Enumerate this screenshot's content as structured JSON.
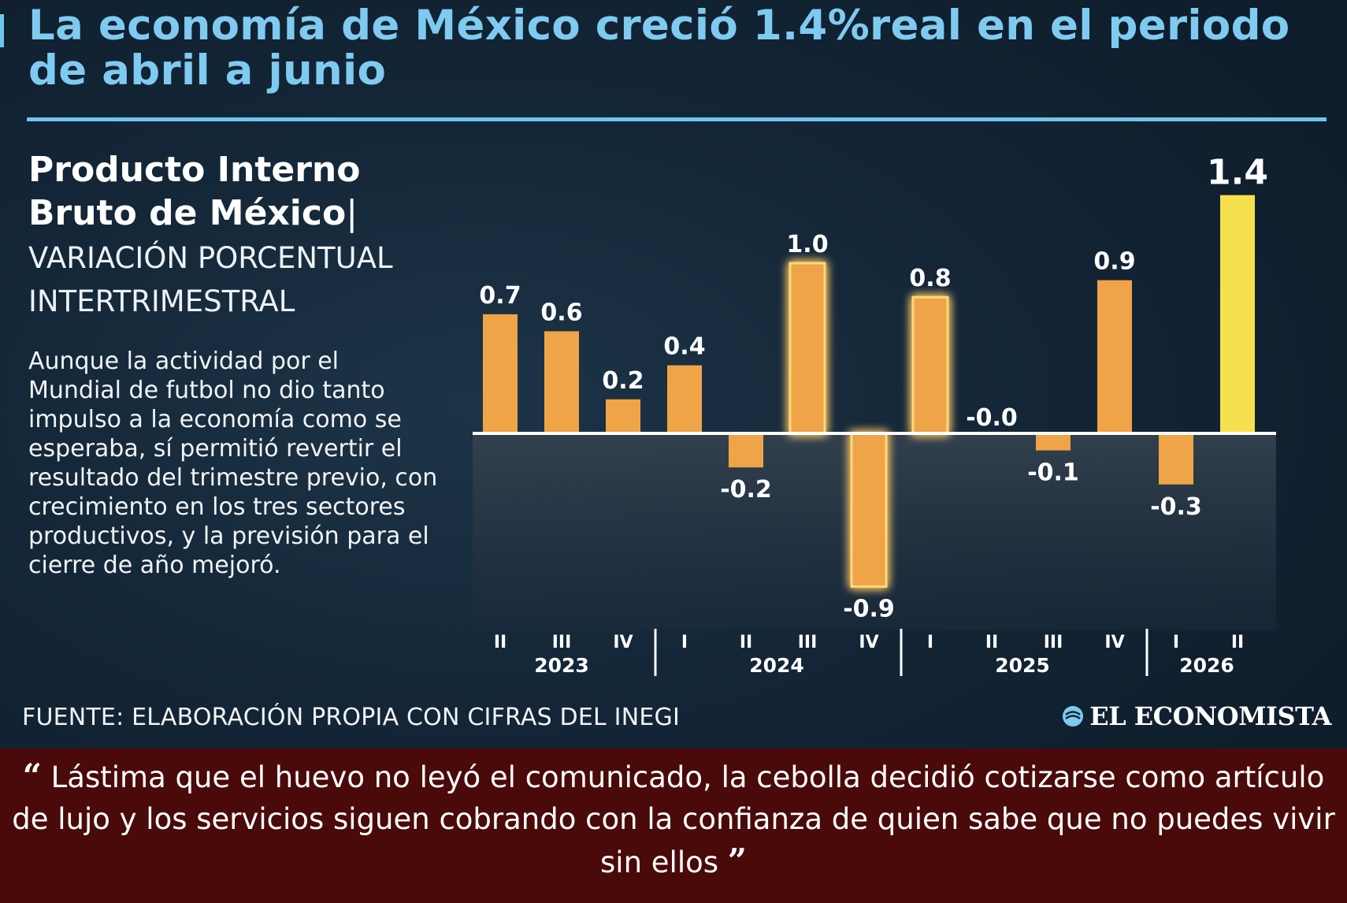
{
  "headline": "La economía de México creció 1.4%real en el periodo de abril a junio",
  "subtitle": {
    "title": "Producto Interno Bruto de México",
    "cursor": "|",
    "measure": "VARIACIÓN PORCENTUAL INTERTRIMESTRAL"
  },
  "body": "Aunque la actividad por el Mundial de futbol no dio tanto impulso a la economía como se esperaba, sí permitió revertir el resultado del trimestre previo, con crecimiento en los tres sectores productivos, y la previsión para el cierre de año mejoró.",
  "source": "FUENTE: ELABORACIÓN PROPIA CON CIFRAS DEL INEGI",
  "brand": "EL ECONOMISTA",
  "quote": {
    "open": "“",
    "text": "Lástima que el huevo no leyó el comunicado, la cebolla decidió cotizarse como artículo de lujo y los servicios siguen cobrando con la confianza de quien sabe que no puedes vivir sin ellos",
    "close": "”"
  },
  "colors": {
    "headline": "#7fcaf0",
    "rule": "#6ec6ee",
    "bar": "#efa448",
    "bar_glow": "#ffd97a",
    "bar_latest": "#f7e04e",
    "quote_band": "#4a0a0a"
  },
  "chart_data": {
    "type": "bar",
    "quarters": [
      "II",
      "III",
      "IV",
      "I",
      "II",
      "III",
      "IV",
      "I",
      "II",
      "III",
      "IV",
      "I",
      "II"
    ],
    "years": [
      {
        "label": "2023",
        "quarters": [
          "II",
          "III",
          "IV"
        ]
      },
      {
        "label": "2024",
        "quarters": [
          "I",
          "II",
          "III",
          "IV"
        ]
      },
      {
        "label": "2025",
        "quarters": [
          "I",
          "II",
          "III",
          "IV"
        ]
      },
      {
        "label": "2026",
        "quarters": [
          "I",
          "II"
        ]
      }
    ],
    "values": [
      0.7,
      0.6,
      0.2,
      0.4,
      -0.2,
      1.0,
      -0.9,
      0.8,
      -0.0,
      -0.1,
      0.9,
      -0.3,
      1.4
    ],
    "labels": [
      "0.7",
      "0.6",
      "0.2",
      "0.4",
      "-0.2",
      "1.0",
      "-0.9",
      "0.8",
      "-0.0",
      "-0.1",
      "0.9",
      "-0.3",
      "1.4"
    ],
    "highlight": [
      false,
      false,
      false,
      false,
      false,
      true,
      true,
      true,
      false,
      false,
      false,
      false,
      false
    ],
    "latest_index": 12,
    "ylim": [
      -1.1,
      1.5
    ],
    "legend": "none",
    "grid": false
  }
}
